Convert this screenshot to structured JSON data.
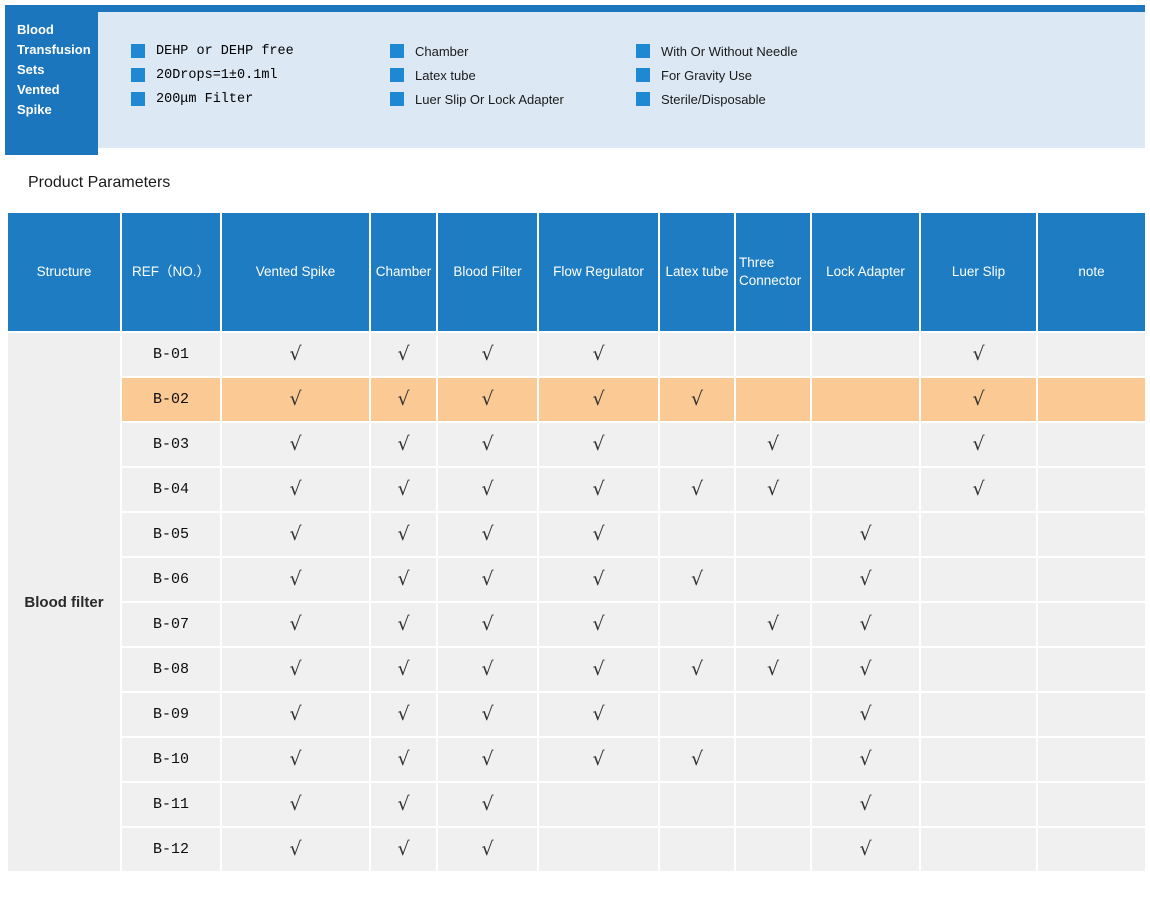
{
  "hero": {
    "title_lines": [
      "Blood",
      "Transfusion",
      "Sets",
      "Vented",
      "Spike"
    ]
  },
  "features": {
    "columns": [
      {
        "items": [
          "DEHP or DEHP free",
          "20Drops=1±0.1ml",
          "200μm Filter"
        ]
      },
      {
        "items": [
          "Chamber",
          "Latex tube",
          "Luer Slip Or Lock Adapter"
        ]
      },
      {
        "items": [
          "With Or Without Needle",
          "For Gravity Use",
          "Sterile/Disposable"
        ]
      }
    ]
  },
  "section_title": "Product Parameters",
  "table": {
    "columns": [
      "Structure",
      "REF（NO.）",
      "Vented Spike",
      "Chamber",
      "Blood Filter",
      "Flow Regulator",
      "Latex tube",
      "Three Connector",
      "Lock Adapter",
      "Luer Slip",
      "note"
    ],
    "structure_label": "Blood filter",
    "check_mark": "√",
    "rows": [
      {
        "ref": "B-01",
        "checks": [
          1,
          1,
          1,
          1,
          0,
          0,
          0,
          1
        ],
        "note": "",
        "highlighted": false
      },
      {
        "ref": "B-02",
        "checks": [
          1,
          1,
          1,
          1,
          1,
          0,
          0,
          1
        ],
        "note": "",
        "highlighted": true
      },
      {
        "ref": "B-03",
        "checks": [
          1,
          1,
          1,
          1,
          0,
          1,
          0,
          1
        ],
        "note": "",
        "highlighted": false
      },
      {
        "ref": "B-04",
        "checks": [
          1,
          1,
          1,
          1,
          1,
          1,
          0,
          1
        ],
        "note": "",
        "highlighted": false
      },
      {
        "ref": "B-05",
        "checks": [
          1,
          1,
          1,
          1,
          0,
          0,
          1,
          0
        ],
        "note": "",
        "highlighted": false
      },
      {
        "ref": "B-06",
        "checks": [
          1,
          1,
          1,
          1,
          1,
          0,
          1,
          0
        ],
        "note": "",
        "highlighted": false
      },
      {
        "ref": "B-07",
        "checks": [
          1,
          1,
          1,
          1,
          0,
          1,
          1,
          0
        ],
        "note": "",
        "highlighted": false
      },
      {
        "ref": "B-08",
        "checks": [
          1,
          1,
          1,
          1,
          1,
          1,
          1,
          0
        ],
        "note": "",
        "highlighted": false
      },
      {
        "ref": "B-09",
        "checks": [
          1,
          1,
          1,
          1,
          0,
          0,
          1,
          0
        ],
        "note": "",
        "highlighted": false
      },
      {
        "ref": "B-10",
        "checks": [
          1,
          1,
          1,
          1,
          1,
          0,
          1,
          0
        ],
        "note": "",
        "highlighted": false
      },
      {
        "ref": "B-11",
        "checks": [
          1,
          1,
          1,
          0,
          0,
          0,
          1,
          0
        ],
        "note": "",
        "highlighted": false
      },
      {
        "ref": "B-12",
        "checks": [
          1,
          1,
          1,
          0,
          0,
          0,
          1,
          0
        ],
        "note": "",
        "highlighted": false
      }
    ]
  },
  "colors": {
    "accent_blue": "#1c76be",
    "header_blue": "#1d7cc2",
    "bullet_blue": "#1f88d3",
    "banner_bg": "#dce9f5",
    "highlight_orange": "#fbc994",
    "cell_gray": "#f0f0f0",
    "structure_gray": "#efefef"
  }
}
